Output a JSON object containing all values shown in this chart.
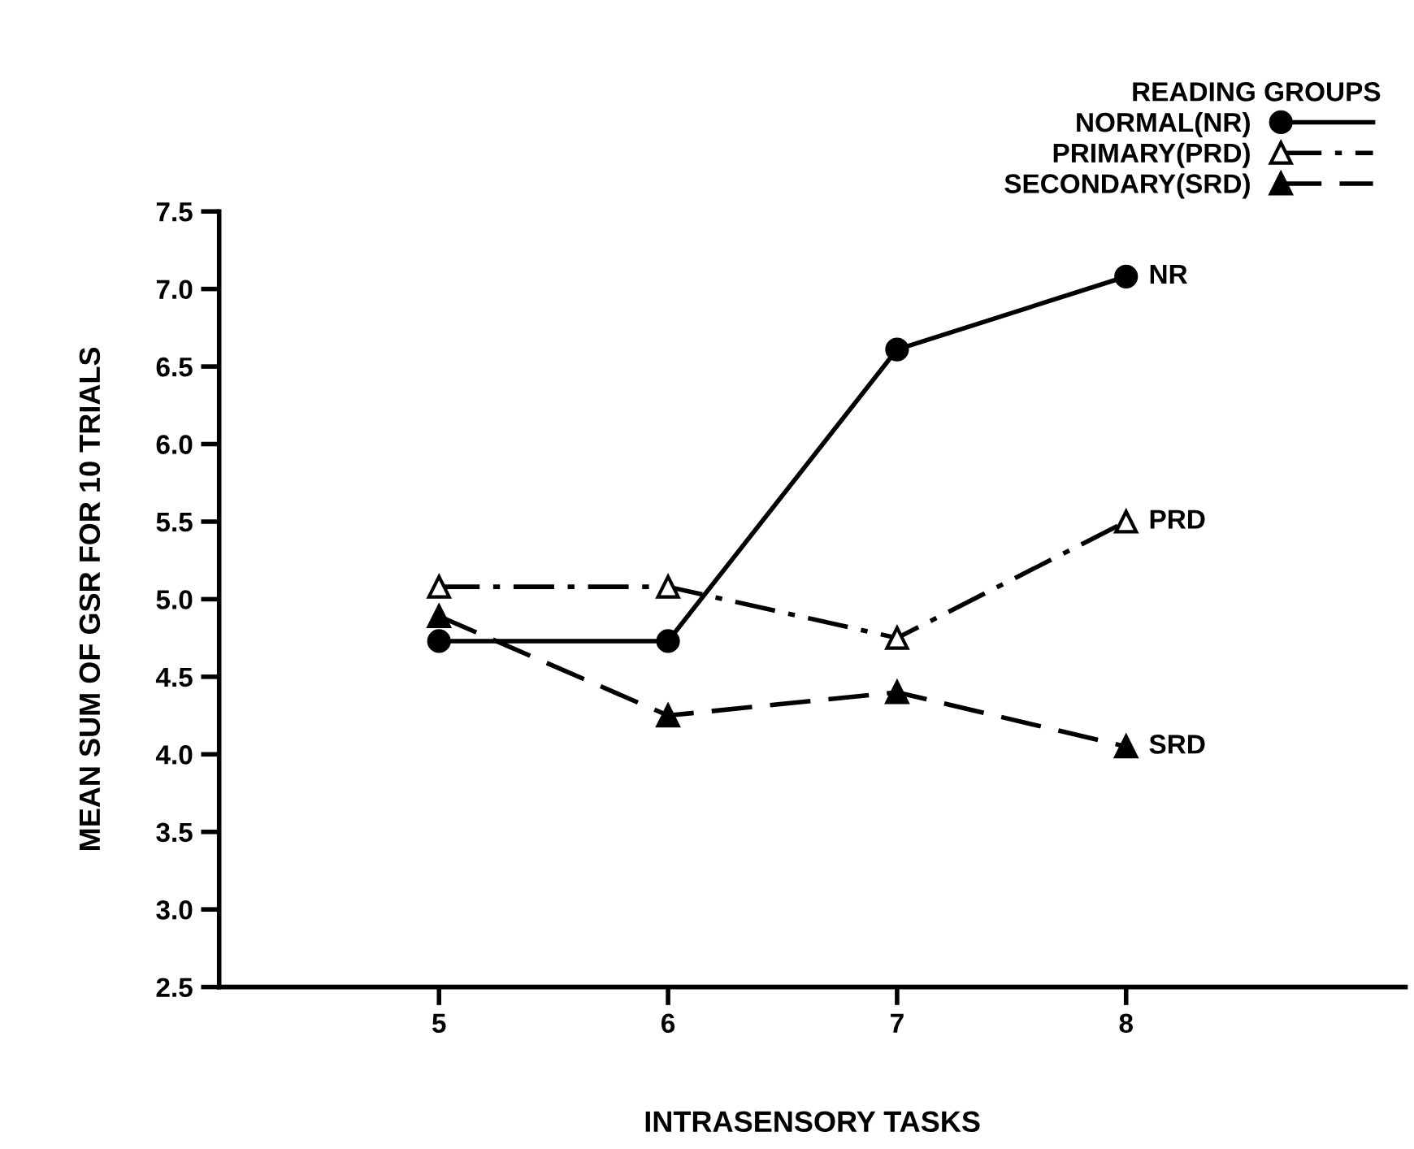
{
  "chart_data": {
    "type": "line",
    "xlabel": "INTRASENSORY TASKS",
    "ylabel": "MEAN SUM OF GSR FOR 10 TRIALS",
    "legend_title": "READING GROUPS",
    "legend": "top right",
    "categories": [
      "5",
      "6",
      "7",
      "8"
    ],
    "ylim": [
      2.5,
      7.5
    ],
    "yticks": [
      2.5,
      {
        "value": 3,
        "label": "3.0"
      },
      3.5,
      {
        "value": 4,
        "label": "4.0"
      },
      4.5,
      {
        "value": 5,
        "label": "5.0"
      },
      5.5,
      {
        "value": 6,
        "label": "6.0"
      },
      6.5,
      {
        "value": 7,
        "label": "7.0"
      },
      7.5
    ],
    "grid": false,
    "series": [
      {
        "name": "NORMAL(NR)",
        "color": "#000000",
        "marker": "circle",
        "line_style": "solid",
        "values": [
          4.73,
          4.73,
          6.61,
          7.08
        ]
      },
      {
        "name": "PRIMARY(PRD)",
        "color": "#000000",
        "marker": "triangle-open",
        "line_style": "dashdot",
        "values": [
          5.08,
          5.08,
          4.75,
          5.5
        ]
      },
      {
        "name": "SECONDARY(SRD)",
        "color": "#000000",
        "marker": "triangle",
        "line_style": "dashed",
        "values": [
          4.89,
          4.25,
          4.4,
          4.05
        ]
      }
    ],
    "annotations": [
      {
        "text": "NR",
        "x": "8",
        "y": 7.08
      },
      {
        "text": "PRD",
        "x": "8",
        "y": 5.5
      },
      {
        "text": "SRD",
        "x": "8",
        "y": 4.05
      }
    ]
  }
}
